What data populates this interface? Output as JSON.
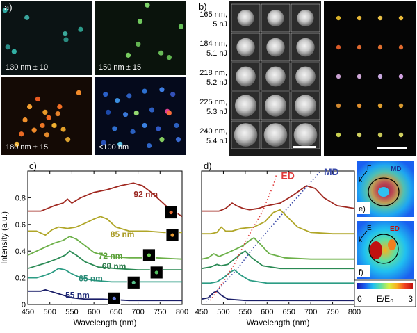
{
  "panel_a": {
    "letter": "a)",
    "tiles": [
      {
        "label": "130 nm ± 10",
        "bg": "#0b1314",
        "spots": [
          [
            0.04,
            0.12,
            "#2fa7a0"
          ],
          [
            0.28,
            0.22,
            "#3aa49c"
          ],
          [
            0.87,
            0.38,
            "#2c9a8a"
          ],
          [
            0.07,
            0.62,
            "#2a8d88"
          ],
          [
            0.14,
            0.68,
            "#32b0a4"
          ],
          [
            0.7,
            0.44,
            "#3aa89a"
          ],
          [
            0.71,
            0.52,
            "#2a8b80"
          ]
        ]
      },
      {
        "label": "150 nm ± 15",
        "bg": "#0a130c",
        "spots": [
          [
            0.58,
            0.05,
            "#7ed46a"
          ],
          [
            0.5,
            0.27,
            "#71c85e"
          ],
          [
            0.37,
            0.73,
            "#78cc60"
          ],
          [
            0.73,
            0.7,
            "#68b957"
          ],
          [
            0.82,
            0.76,
            "#5fb44f"
          ],
          [
            0.48,
            0.58,
            "#63b452"
          ],
          [
            0.95,
            0.34,
            "#67c159"
          ]
        ]
      },
      {
        "label": "180 nm ± 15",
        "bg": "#140a05",
        "spots": [
          [
            0.85,
            0.2,
            "#f08a2a"
          ],
          [
            0.4,
            0.28,
            "#e85a20"
          ],
          [
            0.31,
            0.38,
            "#f4a030"
          ],
          [
            0.48,
            0.45,
            "#e89a28"
          ],
          [
            0.52,
            0.52,
            "#f06a22"
          ],
          [
            0.62,
            0.47,
            "#e5822b"
          ],
          [
            0.58,
            0.62,
            "#f0b030"
          ],
          [
            0.45,
            0.62,
            "#ee7726"
          ],
          [
            0.68,
            0.67,
            "#e4a029"
          ],
          [
            0.36,
            0.68,
            "#f08a2a"
          ],
          [
            0.22,
            0.73,
            "#ea6a24"
          ],
          [
            0.26,
            0.55,
            "#f0902c"
          ],
          [
            0.73,
            0.8,
            "#d8a030"
          ],
          [
            0.64,
            0.38,
            "#f47024"
          ],
          [
            0.5,
            0.74,
            "#e48a2b"
          ],
          [
            0.17,
            0.86,
            "#f0b43a"
          ]
        ]
      },
      {
        "label": "<100  nm",
        "bg": "#050a1c",
        "spots": [
          [
            0.12,
            0.22,
            "#2a60c8"
          ],
          [
            0.25,
            0.3,
            "#3a8ee0"
          ],
          [
            0.38,
            0.24,
            "#2d5fc0"
          ],
          [
            0.55,
            0.18,
            "#2d70d0"
          ],
          [
            0.74,
            0.16,
            "#3d7ce0"
          ],
          [
            0.86,
            0.22,
            "#3350b8"
          ],
          [
            0.15,
            0.45,
            "#1c48a8"
          ],
          [
            0.34,
            0.48,
            "#3a78d8"
          ],
          [
            0.46,
            0.46,
            "#93d870"
          ],
          [
            0.63,
            0.42,
            "#2d5ec0"
          ],
          [
            0.8,
            0.44,
            "#e04090"
          ],
          [
            0.82,
            0.46,
            "#f56a3a"
          ],
          [
            0.22,
            0.66,
            "#3070d0"
          ],
          [
            0.42,
            0.7,
            "#2a60c0"
          ],
          [
            0.55,
            0.62,
            "#3a80e0"
          ],
          [
            0.7,
            0.66,
            "#3058c4"
          ],
          [
            0.9,
            0.62,
            "#2c60c0"
          ],
          [
            0.1,
            0.84,
            "#2850b8"
          ],
          [
            0.28,
            0.86,
            "#58c0e8"
          ],
          [
            0.6,
            0.88,
            "#2f66c8"
          ],
          [
            0.74,
            0.8,
            "#83cb5f"
          ],
          [
            0.92,
            0.8,
            "#3a6ad0"
          ]
        ]
      }
    ]
  },
  "panel_b": {
    "letter": "b)",
    "rows": [
      {
        "line1": "165 nm,",
        "line2": "5 nJ"
      },
      {
        "line1": "184 nm,",
        "line2": "5.1 nJ"
      },
      {
        "line1": "218 nm,",
        "line2": "5.2 nJ"
      },
      {
        "line1": "225 nm,",
        "line2": "5.3 nJ"
      },
      {
        "line1": "240 nm,",
        "line2": "5.4 nJ"
      }
    ],
    "dark_grid_colors": [
      [
        "#d8b028",
        "#e8b838",
        "#e8c048",
        "#e8b838"
      ],
      [
        "#d85a28",
        "#e06a30",
        "#e07030",
        "#e06a2e"
      ],
      [
        "#c8a0d0",
        "#d0a8d8",
        "#c8a8e0",
        "#d0a0e0"
      ],
      [
        "#d08830",
        "#e09030",
        "#e0a030",
        "#d89a30"
      ],
      [
        "#c8d050",
        "#d0d060",
        "#c8c858",
        "#d0d060"
      ]
    ]
  },
  "chart_c": {
    "letter": "c)",
    "type": "line",
    "xlabel": "Wavelength (nm)",
    "ylabel": "Intensity (a.u.)",
    "xlim": [
      450,
      800
    ],
    "ylim": [
      0,
      1.0
    ],
    "xticks": [
      "450",
      "500",
      "550",
      "600",
      "650",
      "700",
      "750",
      "800"
    ],
    "yticks": [
      "0",
      "0.2",
      "0.4",
      "0.6",
      "0.8"
    ],
    "series": [
      {
        "name": "92 nm",
        "color": "#a02820",
        "label_color": "#9a2822",
        "label_x": 745,
        "label_y": 0.805,
        "sq_x": 775,
        "sq_y": 0.69,
        "spot": "#e86a30",
        "points": [
          [
            450,
            0.7
          ],
          [
            480,
            0.7
          ],
          [
            510,
            0.74
          ],
          [
            530,
            0.76
          ],
          [
            540,
            0.79
          ],
          [
            550,
            0.76
          ],
          [
            570,
            0.8
          ],
          [
            600,
            0.84
          ],
          [
            630,
            0.86
          ],
          [
            660,
            0.89
          ],
          [
            690,
            0.91
          ],
          [
            710,
            0.89
          ],
          [
            730,
            0.84
          ],
          [
            750,
            0.78
          ],
          [
            770,
            0.72
          ],
          [
            790,
            0.68
          ],
          [
            800,
            0.66
          ]
        ]
      },
      {
        "name": "85 nm",
        "color": "#b0a628",
        "label_color": "#a89a22",
        "label_x": 692,
        "label_y": 0.505,
        "sq_x": 778,
        "sq_y": 0.52,
        "spot": "#e89a30",
        "points": [
          [
            450,
            0.55
          ],
          [
            470,
            0.55
          ],
          [
            490,
            0.52
          ],
          [
            505,
            0.56
          ],
          [
            520,
            0.58
          ],
          [
            540,
            0.57
          ],
          [
            560,
            0.58
          ],
          [
            580,
            0.61
          ],
          [
            600,
            0.64
          ],
          [
            615,
            0.66
          ],
          [
            630,
            0.64
          ],
          [
            650,
            0.58
          ],
          [
            680,
            0.55
          ],
          [
            720,
            0.55
          ],
          [
            760,
            0.54
          ],
          [
            800,
            0.54
          ]
        ]
      },
      {
        "name": "72 nm",
        "color": "#6cb048",
        "label_color": "#5aa038",
        "label_x": 665,
        "label_y": 0.345,
        "sq_x": 725,
        "sq_y": 0.37,
        "spot": "#70d058",
        "points": [
          [
            450,
            0.37
          ],
          [
            470,
            0.4
          ],
          [
            490,
            0.43
          ],
          [
            510,
            0.46
          ],
          [
            530,
            0.48
          ],
          [
            545,
            0.51
          ],
          [
            560,
            0.49
          ],
          [
            580,
            0.44
          ],
          [
            600,
            0.39
          ],
          [
            630,
            0.36
          ],
          [
            680,
            0.35
          ],
          [
            740,
            0.35
          ],
          [
            800,
            0.34
          ]
        ]
      },
      {
        "name": "68 nm",
        "color": "#2a8a54",
        "label_color": "#2b7a4a",
        "label_x": 673,
        "label_y": 0.265,
        "sq_x": 742,
        "sq_y": 0.24,
        "spot": "#52c060",
        "points": [
          [
            450,
            0.27
          ],
          [
            470,
            0.29
          ],
          [
            490,
            0.31
          ],
          [
            515,
            0.34
          ],
          [
            535,
            0.37
          ],
          [
            545,
            0.4
          ],
          [
            560,
            0.37
          ],
          [
            580,
            0.32
          ],
          [
            610,
            0.28
          ],
          [
            650,
            0.27
          ],
          [
            700,
            0.26
          ],
          [
            750,
            0.26
          ],
          [
            800,
            0.26
          ]
        ]
      },
      {
        "name": "65 nm",
        "color": "#2c9c84",
        "label_color": "#2a8a76",
        "label_x": 620,
        "label_y": 0.175,
        "sq_x": 690,
        "sq_y": 0.165,
        "spot": "#58c08a",
        "points": [
          [
            450,
            0.2
          ],
          [
            470,
            0.2
          ],
          [
            490,
            0.22
          ],
          [
            505,
            0.24
          ],
          [
            520,
            0.27
          ],
          [
            535,
            0.26
          ],
          [
            550,
            0.23
          ],
          [
            570,
            0.2
          ],
          [
            600,
            0.18
          ],
          [
            640,
            0.17
          ],
          [
            700,
            0.17
          ],
          [
            800,
            0.17
          ]
        ]
      },
      {
        "name": "55 nm",
        "color": "#1a1e68",
        "label_color": "#1e2a78",
        "label_x": 590,
        "label_y": 0.05,
        "sq_x": 646,
        "sq_y": 0.045,
        "spot": "#6a80e0",
        "points": [
          [
            450,
            0.1
          ],
          [
            465,
            0.1
          ],
          [
            480,
            0.1
          ],
          [
            490,
            0.11
          ],
          [
            500,
            0.1
          ],
          [
            520,
            0.08
          ],
          [
            550,
            0.05
          ],
          [
            580,
            0.04
          ],
          [
            620,
            0.04
          ],
          [
            680,
            0.03
          ],
          [
            740,
            0.03
          ],
          [
            800,
            0.03
          ]
        ]
      }
    ]
  },
  "chart_d": {
    "letter": "d)",
    "type": "line",
    "xlabel": "Wavelength (nm)",
    "xlim": [
      450,
      800
    ],
    "ylim": [
      0,
      1.0
    ],
    "xticks": [
      "450",
      "500",
      "550",
      "600",
      "650",
      "700",
      "750",
      "800"
    ],
    "ed_label": "ED",
    "md_label": "MD",
    "ed_color": "#e03a3a",
    "md_color": "#3a4aa8",
    "series": [
      {
        "color": "#a02820",
        "points": [
          [
            450,
            0.7
          ],
          [
            490,
            0.7
          ],
          [
            505,
            0.72
          ],
          [
            520,
            0.76
          ],
          [
            530,
            0.74
          ],
          [
            545,
            0.72
          ],
          [
            560,
            0.71
          ],
          [
            580,
            0.72
          ],
          [
            600,
            0.74
          ],
          [
            630,
            0.76
          ],
          [
            660,
            0.82
          ],
          [
            690,
            0.89
          ],
          [
            710,
            0.87
          ],
          [
            730,
            0.8
          ],
          [
            760,
            0.74
          ],
          [
            800,
            0.72
          ]
        ]
      },
      {
        "color": "#b0a628",
        "points": [
          [
            450,
            0.53
          ],
          [
            470,
            0.53
          ],
          [
            485,
            0.54
          ],
          [
            495,
            0.58
          ],
          [
            505,
            0.55
          ],
          [
            520,
            0.55
          ],
          [
            540,
            0.57
          ],
          [
            570,
            0.58
          ],
          [
            595,
            0.62
          ],
          [
            615,
            0.69
          ],
          [
            630,
            0.71
          ],
          [
            645,
            0.66
          ],
          [
            670,
            0.58
          ],
          [
            700,
            0.54
          ],
          [
            750,
            0.53
          ],
          [
            800,
            0.53
          ]
        ]
      },
      {
        "color": "#6cb048",
        "points": [
          [
            450,
            0.34
          ],
          [
            465,
            0.35
          ],
          [
            478,
            0.38
          ],
          [
            490,
            0.36
          ],
          [
            505,
            0.38
          ],
          [
            525,
            0.41
          ],
          [
            545,
            0.44
          ],
          [
            560,
            0.48
          ],
          [
            570,
            0.5
          ],
          [
            585,
            0.45
          ],
          [
            605,
            0.38
          ],
          [
            640,
            0.35
          ],
          [
            700,
            0.34
          ],
          [
            800,
            0.34
          ]
        ]
      },
      {
        "color": "#2a8a54",
        "points": [
          [
            450,
            0.27
          ],
          [
            470,
            0.28
          ],
          [
            485,
            0.3
          ],
          [
            495,
            0.29
          ],
          [
            510,
            0.3
          ],
          [
            525,
            0.34
          ],
          [
            540,
            0.38
          ],
          [
            550,
            0.4
          ],
          [
            565,
            0.35
          ],
          [
            590,
            0.29
          ],
          [
            630,
            0.27
          ],
          [
            700,
            0.27
          ],
          [
            800,
            0.27
          ]
        ]
      },
      {
        "color": "#2c9c84",
        "points": [
          [
            450,
            0.16
          ],
          [
            470,
            0.16
          ],
          [
            485,
            0.17
          ],
          [
            500,
            0.2
          ],
          [
            515,
            0.24
          ],
          [
            525,
            0.26
          ],
          [
            540,
            0.22
          ],
          [
            560,
            0.18
          ],
          [
            600,
            0.16
          ],
          [
            700,
            0.16
          ],
          [
            800,
            0.16
          ]
        ]
      },
      {
        "color": "#1a1e68",
        "points": [
          [
            450,
            0.04
          ],
          [
            465,
            0.05
          ],
          [
            478,
            0.09
          ],
          [
            485,
            0.1
          ],
          [
            495,
            0.07
          ],
          [
            510,
            0.04
          ],
          [
            550,
            0.03
          ],
          [
            650,
            0.03
          ],
          [
            800,
            0.03
          ]
        ]
      }
    ]
  },
  "panel_e": {
    "letter": "e)",
    "mode_label": "MD",
    "e_label": "E",
    "k_label": "k"
  },
  "panel_f": {
    "letter": "f)",
    "mode_label": "ED",
    "e_label": "E",
    "k_label": "k"
  },
  "colorbar": {
    "min_label": "0",
    "max_label": "3",
    "title": "E/E₀",
    "stops": [
      "#1a1ab0",
      "#1a60f0",
      "#20c0f0",
      "#60e0a0",
      "#d8f040",
      "#f8b020",
      "#f04020",
      "#c01010"
    ]
  }
}
